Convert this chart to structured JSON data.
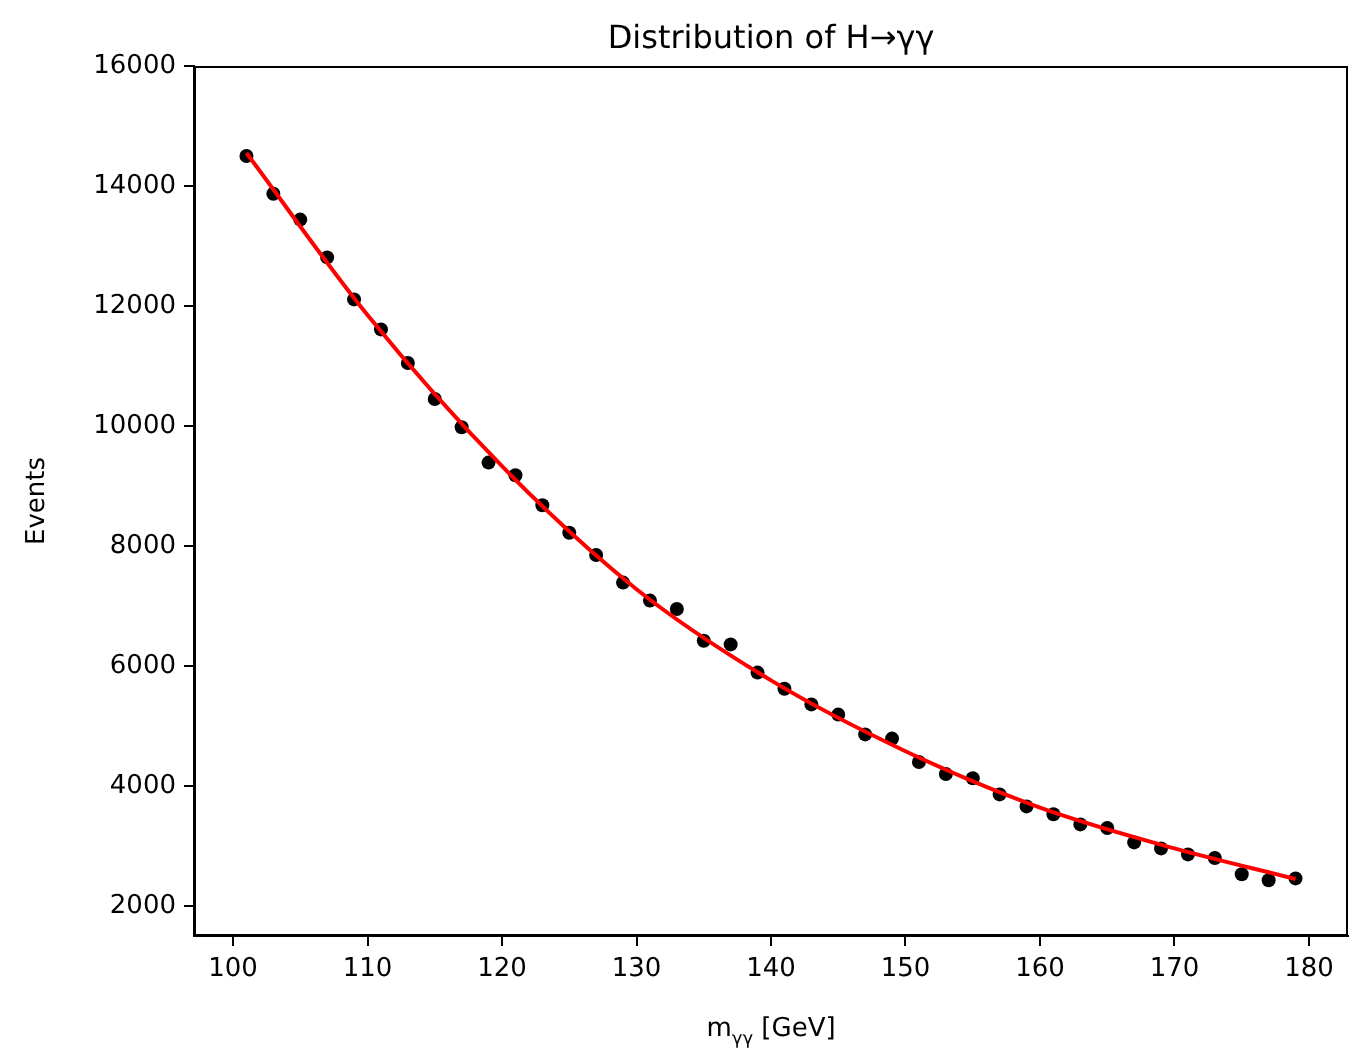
{
  "chart_data": {
    "type": "scatter",
    "title": "Distribution of H→γγ",
    "xlabel": "m$_{γγ}$ [GeV]",
    "ylabel": "Events",
    "xlim": [
      97.1,
      182.9
    ],
    "xticks": [
      100,
      110,
      120,
      130,
      140,
      150,
      160,
      170,
      180
    ],
    "ylim": [
      1500,
      16000
    ],
    "yticks": [
      2000,
      4000,
      6000,
      8000,
      10000,
      12000,
      14000,
      16000
    ],
    "grid": false,
    "legend": false,
    "series": [
      {
        "type": "line",
        "color": "#ff0000",
        "marker": "none",
        "line_style": "solid",
        "x": [
          101,
          110,
          120,
          130,
          140,
          150,
          160,
          170,
          179
        ],
        "values": [
          14550,
          11850,
          9330,
          7280,
          5760,
          4580,
          3640,
          2960,
          2450
        ]
      },
      {
        "type": "scatter",
        "color": "#000000",
        "marker": "circle",
        "x": [
          101,
          103,
          105,
          107,
          109,
          111,
          113,
          115,
          117,
          119,
          121,
          123,
          125,
          127,
          129,
          131,
          133,
          135,
          137,
          139,
          141,
          143,
          145,
          147,
          149,
          151,
          153,
          155,
          157,
          159,
          161,
          163,
          165,
          167,
          169,
          171,
          173,
          175,
          177,
          179
        ],
        "values": [
          14500,
          13870,
          13440,
          12810,
          12110,
          11610,
          11050,
          10450,
          9980,
          9390,
          9180,
          8680,
          8220,
          7850,
          7390,
          7090,
          6950,
          6420,
          6360,
          5890,
          5620,
          5360,
          5190,
          4860,
          4790,
          4400,
          4200,
          4130,
          3860,
          3660,
          3530,
          3360,
          3300,
          3060,
          2960,
          2860,
          2800,
          2530,
          2430,
          2460
        ]
      }
    ]
  }
}
